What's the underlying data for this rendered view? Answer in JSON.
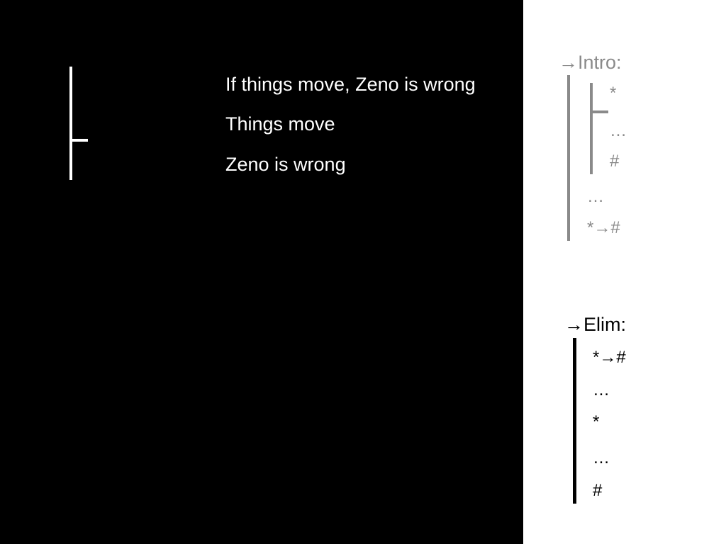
{
  "argument": {
    "lines": [
      "If things move, Zeno is wrong",
      "Things move",
      "Zeno is wrong"
    ]
  },
  "intro_rule": {
    "heading": "→Intro:",
    "inner_lines": [
      "*",
      "…",
      "#"
    ],
    "outer_lines": [
      "…",
      "*→#"
    ]
  },
  "elim_rule": {
    "heading": "→Elim:",
    "lines": [
      "*→#",
      "…",
      "*",
      "…",
      "#"
    ]
  },
  "colors": {
    "left_background": "#000000",
    "right_background": "#ffffff",
    "main_text": "#ffffff",
    "intro_color": "#8a8a8a",
    "elim_color": "#000000"
  }
}
